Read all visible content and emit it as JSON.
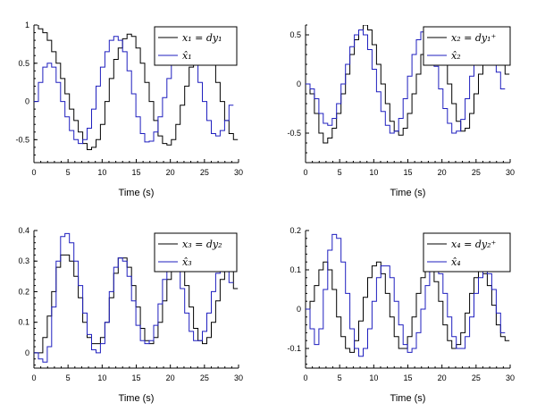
{
  "chart_data": [
    {
      "type": "line",
      "xlabel": "Time (s)",
      "xlim": [
        0,
        30
      ],
      "ylim": [
        -0.8,
        1.0
      ],
      "xticks": [
        0,
        5,
        10,
        15,
        20,
        25,
        30
      ],
      "yticks": [
        -0.5,
        0,
        0.5,
        1
      ],
      "ytick_labels": [
        "-0.5",
        "0",
        "0.5",
        "1"
      ],
      "legend_position": "top-right",
      "series": [
        {
          "name": "x₁ = dy₁",
          "color": "#000000",
          "dx": 0.65,
          "y": [
            1.0,
            0.95,
            0.9,
            0.8,
            0.65,
            0.5,
            0.3,
            0.1,
            -0.1,
            -0.25,
            -0.4,
            -0.55,
            -0.63,
            -0.6,
            -0.5,
            -0.3,
            0.0,
            0.3,
            0.55,
            0.7,
            0.82,
            0.88,
            0.85,
            0.7,
            0.5,
            0.25,
            0.0,
            -0.25,
            -0.45,
            -0.55,
            -0.57,
            -0.5,
            -0.3,
            -0.05,
            0.2,
            0.45,
            0.65,
            0.78,
            0.8,
            0.7,
            0.5,
            0.25,
            0.0,
            -0.25,
            -0.42,
            -0.5
          ]
        },
        {
          "name": "x̂₁",
          "color": "#1f1fbf",
          "dx": 0.65,
          "y": [
            0.0,
            0.25,
            0.45,
            0.5,
            0.45,
            0.25,
            0.0,
            -0.2,
            -0.38,
            -0.5,
            -0.55,
            -0.5,
            -0.35,
            -0.1,
            0.2,
            0.45,
            0.65,
            0.8,
            0.85,
            0.8,
            0.65,
            0.4,
            0.1,
            -0.2,
            -0.42,
            -0.53,
            -0.52,
            -0.4,
            -0.2,
            0.05,
            0.3,
            0.55,
            0.75,
            0.85,
            0.85,
            0.72,
            0.5,
            0.25,
            0.0,
            -0.25,
            -0.42,
            -0.45,
            -0.38,
            -0.25,
            -0.05
          ]
        }
      ]
    },
    {
      "type": "line",
      "xlabel": "Time (s)",
      "xlim": [
        0,
        30
      ],
      "ylim": [
        -0.8,
        0.6
      ],
      "xticks": [
        0,
        5,
        10,
        15,
        20,
        25,
        30
      ],
      "yticks": [
        -0.5,
        0,
        0.5
      ],
      "ytick_labels": [
        "-0.5",
        "0",
        "0.5"
      ],
      "legend_position": "top-right",
      "series": [
        {
          "name": "x₂ = dy₁⁺",
          "color": "#000000",
          "dx": 0.65,
          "y": [
            0.0,
            -0.1,
            -0.3,
            -0.5,
            -0.6,
            -0.55,
            -0.45,
            -0.3,
            -0.1,
            0.1,
            0.3,
            0.45,
            0.55,
            0.6,
            0.55,
            0.4,
            0.2,
            0.0,
            -0.2,
            -0.38,
            -0.48,
            -0.52,
            -0.45,
            -0.3,
            -0.1,
            0.1,
            0.3,
            0.45,
            0.52,
            0.5,
            0.38,
            0.2,
            0.0,
            -0.2,
            -0.38,
            -0.48,
            -0.45,
            -0.3,
            -0.1,
            0.1,
            0.3,
            0.45,
            0.45,
            0.38,
            0.25,
            0.1
          ]
        },
        {
          "name": "x̂₂",
          "color": "#1f1fbf",
          "dx": 0.65,
          "y": [
            0.0,
            -0.05,
            -0.15,
            -0.3,
            -0.4,
            -0.42,
            -0.35,
            -0.2,
            0.0,
            0.2,
            0.38,
            0.5,
            0.55,
            0.5,
            0.35,
            0.15,
            -0.08,
            -0.28,
            -0.42,
            -0.5,
            -0.48,
            -0.35,
            -0.15,
            0.08,
            0.3,
            0.45,
            0.53,
            0.5,
            0.38,
            0.18,
            -0.05,
            -0.25,
            -0.4,
            -0.5,
            -0.48,
            -0.36,
            -0.15,
            0.08,
            0.3,
            0.45,
            0.5,
            0.45,
            0.32,
            0.12,
            -0.05
          ]
        }
      ]
    },
    {
      "type": "line",
      "xlabel": "Time (s)",
      "xlim": [
        0,
        30
      ],
      "ylim": [
        -0.05,
        0.4
      ],
      "xticks": [
        0,
        5,
        10,
        15,
        20,
        25,
        30
      ],
      "yticks": [
        0,
        0.1,
        0.2,
        0.3,
        0.4
      ],
      "ytick_labels": [
        "0",
        "0.1",
        "0.2",
        "0.3",
        "0.4"
      ],
      "legend_position": "top-right",
      "series": [
        {
          "name": "x₃ = dy₂",
          "color": "#000000",
          "dx": 0.65,
          "y": [
            0.0,
            0.0,
            0.05,
            0.12,
            0.2,
            0.28,
            0.32,
            0.32,
            0.3,
            0.25,
            0.18,
            0.1,
            0.05,
            0.03,
            0.03,
            0.05,
            0.1,
            0.18,
            0.26,
            0.31,
            0.31,
            0.28,
            0.22,
            0.15,
            0.08,
            0.04,
            0.03,
            0.05,
            0.1,
            0.17,
            0.24,
            0.29,
            0.3,
            0.28,
            0.22,
            0.15,
            0.08,
            0.04,
            0.03,
            0.05,
            0.1,
            0.17,
            0.24,
            0.29,
            0.3,
            0.21
          ]
        },
        {
          "name": "x̂₃",
          "color": "#1f1fbf",
          "dx": 0.65,
          "y": [
            0.0,
            -0.02,
            -0.03,
            0.02,
            0.15,
            0.3,
            0.38,
            0.39,
            0.36,
            0.3,
            0.22,
            0.13,
            0.06,
            0.01,
            0.0,
            0.03,
            0.1,
            0.2,
            0.28,
            0.31,
            0.3,
            0.25,
            0.17,
            0.09,
            0.04,
            0.03,
            0.04,
            0.09,
            0.16,
            0.24,
            0.29,
            0.3,
            0.27,
            0.21,
            0.13,
            0.07,
            0.04,
            0.04,
            0.07,
            0.13,
            0.2,
            0.26,
            0.29,
            0.28,
            0.23
          ]
        }
      ]
    },
    {
      "type": "line",
      "xlabel": "Time (s)",
      "xlim": [
        0,
        30
      ],
      "ylim": [
        -0.15,
        0.2
      ],
      "xticks": [
        0,
        5,
        10,
        15,
        20,
        25,
        30
      ],
      "yticks": [
        -0.1,
        0,
        0.1,
        0.2
      ],
      "ytick_labels": [
        "-0.1",
        "0",
        "0.1",
        "0.2"
      ],
      "legend_position": "top-right",
      "series": [
        {
          "name": "x₄ = dy₂⁺",
          "color": "#000000",
          "dx": 0.65,
          "y": [
            0.0,
            0.02,
            0.06,
            0.1,
            0.12,
            0.1,
            0.05,
            -0.02,
            -0.07,
            -0.1,
            -0.11,
            -0.08,
            -0.03,
            0.03,
            0.08,
            0.11,
            0.12,
            0.09,
            0.04,
            -0.02,
            -0.07,
            -0.1,
            -0.1,
            -0.07,
            -0.02,
            0.04,
            0.08,
            0.1,
            0.1,
            0.07,
            0.02,
            -0.04,
            -0.08,
            -0.1,
            -0.09,
            -0.06,
            -0.01,
            0.04,
            0.08,
            0.1,
            0.09,
            0.06,
            0.01,
            -0.04,
            -0.07,
            -0.08
          ]
        },
        {
          "name": "x̂₄",
          "color": "#1f1fbf",
          "dx": 0.65,
          "y": [
            0.0,
            -0.05,
            -0.09,
            -0.05,
            0.05,
            0.15,
            0.19,
            0.18,
            0.12,
            0.04,
            -0.05,
            -0.1,
            -0.12,
            -0.1,
            -0.05,
            0.02,
            0.08,
            0.11,
            0.11,
            0.08,
            0.02,
            -0.04,
            -0.09,
            -0.11,
            -0.1,
            -0.06,
            0.0,
            0.06,
            0.1,
            0.11,
            0.09,
            0.04,
            -0.02,
            -0.07,
            -0.1,
            -0.1,
            -0.07,
            -0.02,
            0.04,
            0.08,
            0.1,
            0.09,
            0.05,
            -0.01,
            -0.06
          ]
        }
      ]
    }
  ]
}
